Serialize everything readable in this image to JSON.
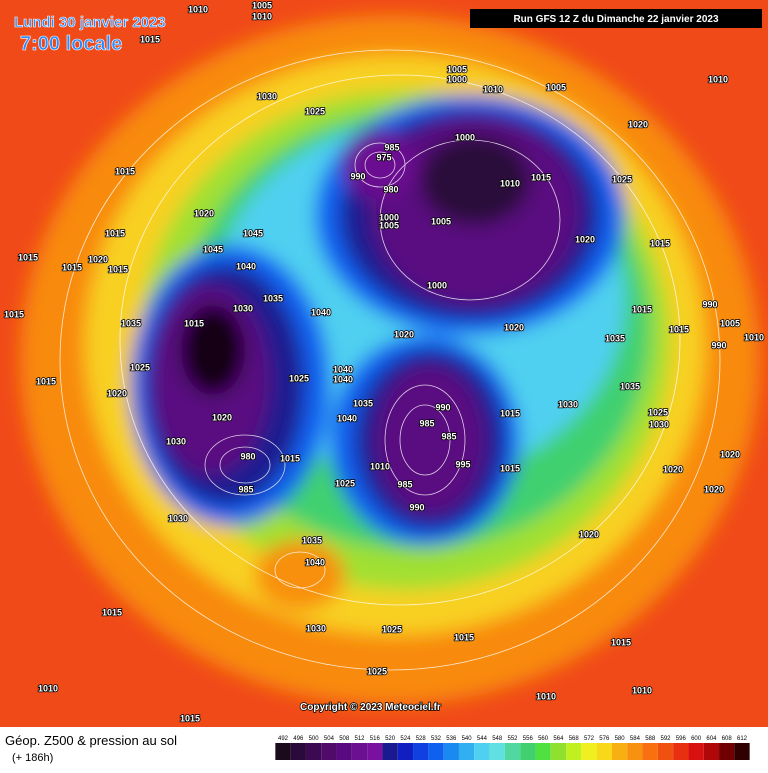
{
  "header": {
    "date": "Lundi 30 janvier 2023",
    "time": "7:00 locale",
    "run": "Run GFS 12 Z du Dimanche 22 janvier 2023"
  },
  "footer": {
    "title": "Géop. Z500 & pression au sol",
    "lead": "(+ 186h)",
    "copyright": "Copyright © 2023 Meteociel.fr"
  },
  "legend": {
    "values": [
      492,
      496,
      500,
      504,
      508,
      512,
      516,
      520,
      524,
      528,
      532,
      536,
      540,
      544,
      548,
      552,
      556,
      560,
      564,
      568,
      572,
      576,
      580,
      584,
      588,
      592,
      596,
      600,
      604,
      608,
      612
    ],
    "colors": [
      "#1a0a1a",
      "#2a0a3a",
      "#3c0a50",
      "#500a6a",
      "#5a0a80",
      "#6a1090",
      "#7a10a0",
      "#1a1a90",
      "#1020c0",
      "#1040e0",
      "#1060f0",
      "#1a8af0",
      "#30b0f0",
      "#50d0f0",
      "#60e0e0",
      "#50d8a0",
      "#40d070",
      "#50e040",
      "#90e030",
      "#c0f020",
      "#f0f020",
      "#f8d818",
      "#f8b010",
      "#f89010",
      "#f87010",
      "#f05010",
      "#e83010",
      "#d81010",
      "#b00808",
      "#700000",
      "#300000"
    ]
  },
  "isobar_labels": [
    "1010",
    "1005",
    "1010",
    "1015",
    "1030",
    "1025",
    "1005",
    "1000",
    "1010",
    "1005",
    "1010",
    "1020",
    "1015",
    "1000",
    "985",
    "975",
    "990",
    "980",
    "1010",
    "1015",
    "1025",
    "1020",
    "1045",
    "1015",
    "1020",
    "1015",
    "1015",
    "1015",
    "1000",
    "1005",
    "1005",
    "1020",
    "1015",
    "1045",
    "1040",
    "1035",
    "1030",
    "1040",
    "1015",
    "1035",
    "1015",
    "1000",
    "990",
    "1015",
    "1015",
    "1005",
    "990",
    "1010",
    "1020",
    "1020",
    "1035",
    "1025",
    "1025",
    "1040",
    "1040",
    "1015",
    "1020",
    "1035",
    "990",
    "1035",
    "1015",
    "1030",
    "1025",
    "1030",
    "1020",
    "985",
    "985",
    "1030",
    "1040",
    "1020",
    "1020",
    "980",
    "1015",
    "995",
    "1010",
    "1015",
    "985",
    "1025",
    "985",
    "990",
    "1020",
    "1030",
    "1020",
    "1035",
    "1040",
    "1015",
    "1030",
    "1025",
    "1015",
    "1015",
    "1025",
    "1010",
    "1010",
    "1010",
    "1015"
  ]
}
